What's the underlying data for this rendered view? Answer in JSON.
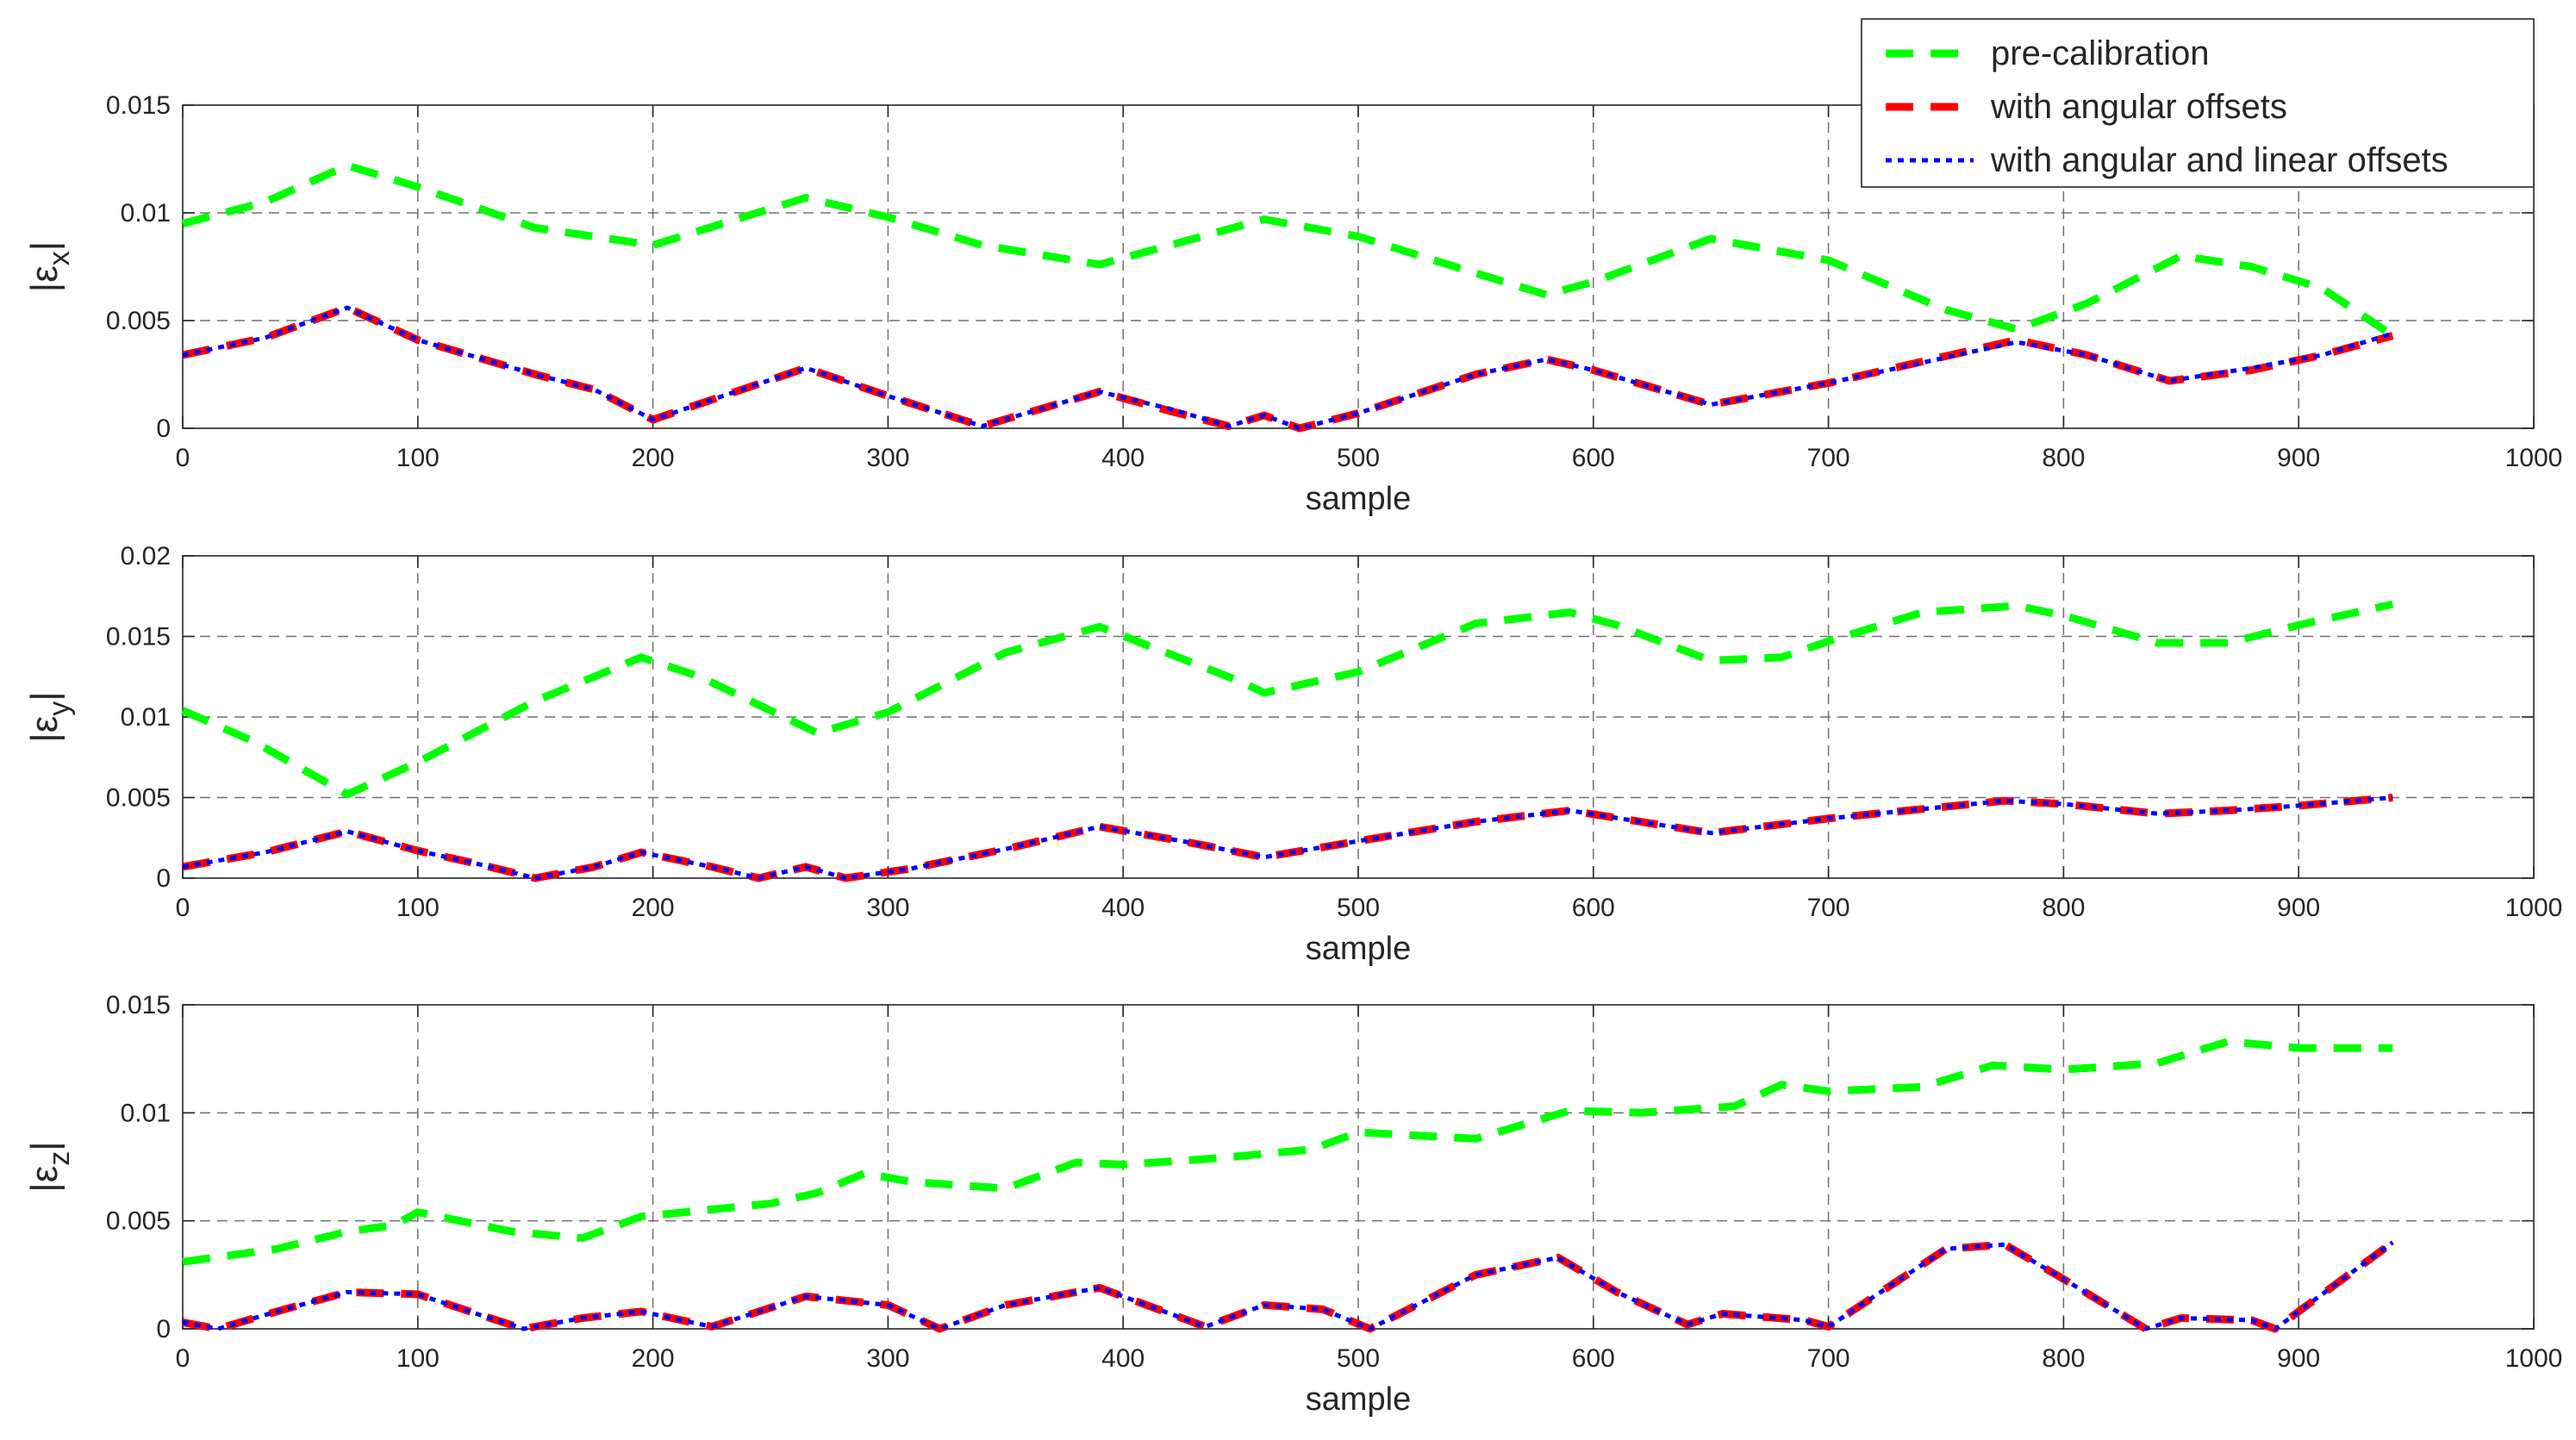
{
  "legend": {
    "position": "top-right",
    "entries": [
      {
        "name": "pre-calibration",
        "color": "#00FF00",
        "style": "dashed"
      },
      {
        "name": "with angular offsets",
        "color": "#FF0000",
        "style": "dashed"
      },
      {
        "name": "with angular and linear offsets",
        "color": "#0000FF",
        "style": "dotted"
      }
    ]
  },
  "chart_data": [
    {
      "type": "line",
      "title": "",
      "xlabel": "sample",
      "ylabel_base": "|ε",
      "ylabel_sub": "x",
      "ylabel_tail": "|",
      "xlim": [
        0,
        1000
      ],
      "ylim": [
        0,
        0.015
      ],
      "xticks": [
        "0",
        "100",
        "200",
        "300",
        "400",
        "500",
        "600",
        "700",
        "800",
        "900",
        "1000"
      ],
      "yticks": [
        "0",
        "0.005",
        "0.01",
        "0.015"
      ],
      "grid": true,
      "series": [
        {
          "name": "pre-calibration",
          "x": [
            0,
            35,
            70,
            100,
            150,
            200,
            265,
            300,
            340,
            390,
            460,
            500,
            550,
            580,
            600,
            650,
            700,
            750,
            780,
            810,
            850,
            880,
            910,
            940
          ],
          "values": [
            0.0095,
            0.0105,
            0.0122,
            0.0112,
            0.0093,
            0.0085,
            0.0107,
            0.0098,
            0.0085,
            0.0076,
            0.0097,
            0.0089,
            0.0072,
            0.0062,
            0.0068,
            0.0088,
            0.0078,
            0.0055,
            0.0046,
            0.0058,
            0.008,
            0.0075,
            0.0065,
            0.0043
          ]
        },
        {
          "name": "with angular offsets",
          "x": [
            0,
            35,
            70,
            100,
            150,
            175,
            200,
            265,
            300,
            340,
            390,
            420,
            445,
            460,
            475,
            500,
            550,
            580,
            600,
            650,
            700,
            780,
            810,
            845,
            880,
            910,
            940
          ],
          "values": [
            0.0034,
            0.0042,
            0.0056,
            0.0041,
            0.0025,
            0.0018,
            0.0004,
            0.0028,
            0.0015,
            0.0001,
            0.0017,
            0.0008,
            0.0001,
            0.0006,
            0.0,
            0.0007,
            0.0025,
            0.0032,
            0.0027,
            0.0011,
            0.0021,
            0.0041,
            0.0034,
            0.0022,
            0.0027,
            0.0034,
            0.0043
          ]
        },
        {
          "name": "with angular and linear offsets",
          "x": [
            0,
            35,
            70,
            100,
            150,
            175,
            200,
            265,
            300,
            340,
            390,
            420,
            445,
            460,
            475,
            500,
            550,
            580,
            600,
            650,
            700,
            780,
            810,
            845,
            880,
            910,
            940
          ],
          "values": [
            0.0034,
            0.0042,
            0.0056,
            0.0041,
            0.0025,
            0.0018,
            0.0004,
            0.0028,
            0.0015,
            0.0001,
            0.0017,
            0.0009,
            0.0001,
            0.0006,
            0.0,
            0.0007,
            0.0025,
            0.0032,
            0.0027,
            0.0011,
            0.0021,
            0.004,
            0.0034,
            0.0022,
            0.0028,
            0.0034,
            0.0044
          ]
        }
      ]
    },
    {
      "type": "line",
      "title": "",
      "xlabel": "sample",
      "ylabel_base": "|ε",
      "ylabel_sub": "y",
      "ylabel_tail": "|",
      "xlim": [
        0,
        1000
      ],
      "ylim": [
        0,
        0.02
      ],
      "xticks": [
        "0",
        "100",
        "200",
        "300",
        "400",
        "500",
        "600",
        "700",
        "800",
        "900",
        "1000"
      ],
      "yticks": [
        "0",
        "0.005",
        "0.01",
        "0.015",
        "0.02"
      ],
      "grid": true,
      "series": [
        {
          "name": "pre-calibration",
          "x": [
            0,
            30,
            70,
            100,
            150,
            195,
            220,
            270,
            300,
            350,
            390,
            450,
            460,
            500,
            550,
            590,
            610,
            650,
            680,
            700,
            740,
            780,
            800,
            840,
            870,
            900,
            940
          ],
          "values": [
            0.0104,
            0.0085,
            0.0052,
            0.0072,
            0.011,
            0.0137,
            0.0125,
            0.009,
            0.0103,
            0.014,
            0.0156,
            0.0122,
            0.0115,
            0.0128,
            0.0158,
            0.0165,
            0.0157,
            0.0135,
            0.0137,
            0.0147,
            0.0165,
            0.0169,
            0.0163,
            0.0146,
            0.0146,
            0.0157,
            0.017
          ]
        },
        {
          "name": "with angular offsets",
          "x": [
            0,
            35,
            70,
            100,
            125,
            150,
            175,
            195,
            225,
            245,
            265,
            282,
            310,
            350,
            390,
            425,
            460,
            500,
            550,
            590,
            650,
            700,
            775,
            800,
            840,
            870,
            900,
            940
          ],
          "values": [
            0.0007,
            0.0016,
            0.0029,
            0.0017,
            0.0009,
            0.0,
            0.0007,
            0.0016,
            0.0007,
            0.0,
            0.0007,
            0.0,
            0.0006,
            0.0018,
            0.0032,
            0.0023,
            0.0013,
            0.0023,
            0.0035,
            0.0042,
            0.0028,
            0.0037,
            0.0048,
            0.0046,
            0.004,
            0.0042,
            0.0045,
            0.005
          ]
        },
        {
          "name": "with angular and linear offsets",
          "x": [
            0,
            35,
            70,
            100,
            125,
            150,
            175,
            195,
            225,
            245,
            265,
            282,
            310,
            350,
            390,
            425,
            460,
            500,
            550,
            590,
            650,
            700,
            775,
            800,
            840,
            870,
            900,
            940
          ],
          "values": [
            0.0007,
            0.0016,
            0.0029,
            0.0017,
            0.0009,
            0.0,
            0.0007,
            0.0016,
            0.0007,
            0.0,
            0.0007,
            0.0,
            0.0006,
            0.0018,
            0.0032,
            0.0023,
            0.0013,
            0.0023,
            0.0035,
            0.0042,
            0.0028,
            0.0037,
            0.0048,
            0.0046,
            0.004,
            0.0042,
            0.0045,
            0.005
          ]
        }
      ]
    },
    {
      "type": "line",
      "title": "",
      "xlabel": "sample",
      "ylabel_base": "|ε",
      "ylabel_sub": "z",
      "ylabel_tail": "|",
      "xlim": [
        0,
        1000
      ],
      "ylim": [
        0,
        0.015
      ],
      "xticks": [
        "0",
        "100",
        "200",
        "300",
        "400",
        "500",
        "600",
        "700",
        "800",
        "900",
        "1000"
      ],
      "yticks": [
        "0",
        "0.005",
        "0.01",
        "0.015"
      ],
      "grid": true,
      "series": [
        {
          "name": "pre-calibration",
          "x": [
            0,
            40,
            70,
            90,
            100,
            140,
            170,
            195,
            250,
            270,
            290,
            310,
            350,
            380,
            400,
            440,
            480,
            500,
            550,
            590,
            620,
            660,
            680,
            700,
            740,
            770,
            800,
            840,
            870,
            900,
            940
          ],
          "values": [
            0.0031,
            0.0037,
            0.0045,
            0.0048,
            0.0054,
            0.0045,
            0.0042,
            0.0052,
            0.0058,
            0.0063,
            0.0072,
            0.0068,
            0.0065,
            0.0077,
            0.0076,
            0.0079,
            0.0083,
            0.0091,
            0.0088,
            0.0101,
            0.01,
            0.0103,
            0.0113,
            0.011,
            0.0112,
            0.0122,
            0.012,
            0.0123,
            0.0133,
            0.013,
            0.013
          ]
        },
        {
          "name": "with angular offsets",
          "x": [
            0,
            15,
            40,
            70,
            100,
            125,
            145,
            170,
            195,
            225,
            265,
            300,
            322,
            350,
            390,
            435,
            460,
            485,
            505,
            550,
            585,
            610,
            640,
            655,
            690,
            700,
            750,
            775,
            800,
            835,
            850,
            880,
            890,
            940
          ],
          "values": [
            0.0003,
            0.0,
            0.0008,
            0.0017,
            0.0016,
            0.0007,
            0.0,
            0.0005,
            0.0008,
            0.0001,
            0.0015,
            0.0011,
            0.0,
            0.0011,
            0.0019,
            0.0001,
            0.0011,
            0.0009,
            0.0,
            0.0025,
            0.0033,
            0.0017,
            0.0002,
            0.0007,
            0.0004,
            0.0001,
            0.0037,
            0.0039,
            0.0023,
            0.0,
            0.0005,
            0.0004,
            0.0,
            0.004
          ]
        },
        {
          "name": "with angular and linear offsets",
          "x": [
            0,
            15,
            40,
            70,
            100,
            125,
            145,
            170,
            195,
            225,
            265,
            300,
            322,
            350,
            390,
            435,
            460,
            485,
            505,
            550,
            585,
            610,
            640,
            655,
            690,
            700,
            750,
            775,
            800,
            835,
            850,
            880,
            890,
            940
          ],
          "values": [
            0.0003,
            0.0,
            0.0008,
            0.0017,
            0.0016,
            0.0007,
            0.0,
            0.0005,
            0.0008,
            0.0001,
            0.0015,
            0.0011,
            0.0,
            0.0011,
            0.0019,
            0.0001,
            0.0011,
            0.0009,
            0.0,
            0.0025,
            0.0033,
            0.0017,
            0.0002,
            0.0007,
            0.0004,
            0.0001,
            0.0037,
            0.0039,
            0.0023,
            0.0,
            0.0005,
            0.0004,
            0.0,
            0.004
          ]
        }
      ]
    }
  ]
}
